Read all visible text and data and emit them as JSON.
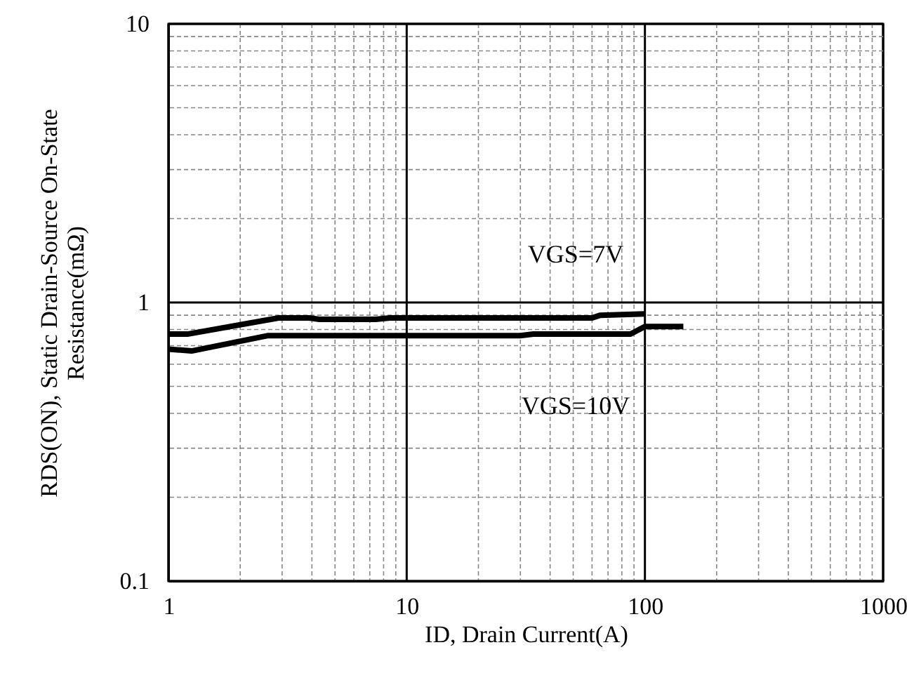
{
  "chart_data": {
    "type": "line",
    "xlabel": "ID, Drain Current(A)",
    "ylabel": "RDS(ON), Static Drain-Source On-State\nResistance(mΩ)",
    "log": "xy",
    "grid": true,
    "line_style": "solid",
    "marker": "none",
    "xlim": [
      1,
      1000
    ],
    "ylim": [
      0.1,
      10
    ],
    "xticks": [
      1,
      {
        "value": 2,
        "label": null
      },
      {
        "value": 3,
        "label": null
      },
      {
        "value": 4,
        "label": null
      },
      {
        "value": 5,
        "label": null
      },
      {
        "value": 6,
        "label": null
      },
      {
        "value": 7,
        "label": null
      },
      {
        "value": 8,
        "label": null
      },
      {
        "value": 9,
        "label": null
      },
      10,
      {
        "value": 20,
        "label": null
      },
      {
        "value": 30,
        "label": null
      },
      {
        "value": 40,
        "label": null
      },
      {
        "value": 50,
        "label": null
      },
      {
        "value": 60,
        "label": null
      },
      {
        "value": 70,
        "label": null
      },
      {
        "value": 80,
        "label": null
      },
      {
        "value": 90,
        "label": null
      },
      100,
      {
        "value": 200,
        "label": null
      },
      {
        "value": 300,
        "label": null
      },
      {
        "value": 400,
        "label": null
      },
      {
        "value": 500,
        "label": null
      },
      {
        "value": 600,
        "label": null
      },
      {
        "value": 700,
        "label": null
      },
      {
        "value": 800,
        "label": null
      },
      {
        "value": 900,
        "label": null
      },
      1000
    ],
    "yticks": [
      0.1,
      {
        "value": 0.2,
        "label": null
      },
      {
        "value": 0.3,
        "label": null
      },
      {
        "value": 0.4,
        "label": null
      },
      {
        "value": 0.5,
        "label": null
      },
      {
        "value": 0.6,
        "label": null
      },
      {
        "value": 0.7,
        "label": null
      },
      {
        "value": 0.8,
        "label": null
      },
      {
        "value": 0.9,
        "label": null
      },
      1,
      {
        "value": 2,
        "label": null
      },
      {
        "value": 3,
        "label": null
      },
      {
        "value": 4,
        "label": null
      },
      {
        "value": 5,
        "label": null
      },
      {
        "value": 6,
        "label": null
      },
      {
        "value": 7,
        "label": null
      },
      {
        "value": 8,
        "label": null
      },
      {
        "value": 9,
        "label": null
      },
      10
    ],
    "series": [
      {
        "color": "#000000",
        "x": [
          1,
          1.2,
          2.9,
          3.9,
          4.3,
          7.4,
          8.5,
          60,
          65,
          100
        ],
        "values": [
          0.77,
          0.77,
          0.88,
          0.88,
          0.87,
          0.87,
          0.88,
          0.88,
          0.9,
          0.91
        ]
      },
      {
        "color": "#000000",
        "x": [
          1,
          1.25,
          2.6,
          30,
          34,
          87,
          100,
          145
        ],
        "values": [
          0.68,
          0.67,
          0.76,
          0.76,
          0.77,
          0.77,
          0.82,
          0.82
        ]
      }
    ],
    "annotations": [
      "VGS=7V",
      "VGS=10V"
    ]
  }
}
